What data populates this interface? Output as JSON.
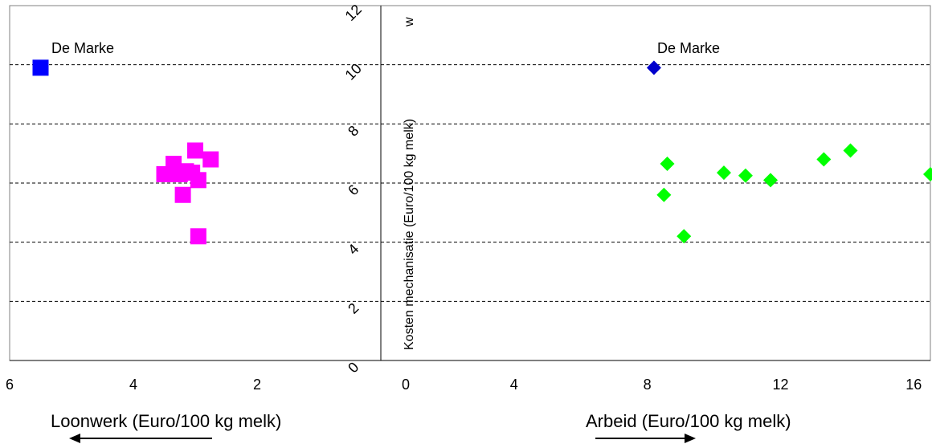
{
  "chart_data": {
    "type": "scatter",
    "y_axis": {
      "label": "Kosten mechanisatie (Euro/100 kg melk)",
      "ylim": [
        0,
        12
      ],
      "ticks": [
        "0",
        "2",
        "4",
        "6",
        "8",
        "10",
        "12"
      ],
      "grid": [
        2,
        4,
        6,
        8,
        10
      ],
      "extra_mark": "w"
    },
    "left_panel": {
      "xlabel": "Loonwerk (Euro/100 kg melk)",
      "xlim": [
        6,
        0
      ],
      "x_ticks": [
        "6",
        "4",
        "2"
      ],
      "series": [
        {
          "marker": "square",
          "color": "#0000ff",
          "points": [
            {
              "x": 5.5,
              "y": 9.9
            }
          ]
        },
        {
          "marker": "square",
          "color": "#ff00ff",
          "points": [
            {
              "x": 3.0,
              "y": 7.1
            },
            {
              "x": 2.75,
              "y": 6.8
            },
            {
              "x": 3.35,
              "y": 6.65
            },
            {
              "x": 3.05,
              "y": 6.35
            },
            {
              "x": 3.25,
              "y": 6.3
            },
            {
              "x": 3.5,
              "y": 6.3
            },
            {
              "x": 3.15,
              "y": 6.4
            },
            {
              "x": 2.95,
              "y": 6.1
            },
            {
              "x": 3.2,
              "y": 5.6
            },
            {
              "x": 2.95,
              "y": 4.2
            }
          ]
        }
      ],
      "annotation": "De Marke"
    },
    "right_panel": {
      "xlabel": "Arbeid (Euro/100 kg melk)",
      "xlim": [
        0,
        16.5
      ],
      "x_ticks": [
        "0",
        "4",
        "8",
        "12",
        "16"
      ],
      "series": [
        {
          "marker": "diamond",
          "color": "#0000cc",
          "points": [
            {
              "x": 8.2,
              "y": 9.9
            }
          ]
        },
        {
          "marker": "diamond",
          "color": "#00ff00",
          "points": [
            {
              "x": 8.6,
              "y": 6.65
            },
            {
              "x": 8.5,
              "y": 5.6
            },
            {
              "x": 9.1,
              "y": 4.2
            },
            {
              "x": 10.3,
              "y": 6.35
            },
            {
              "x": 10.95,
              "y": 6.25
            },
            {
              "x": 11.7,
              "y": 6.1
            },
            {
              "x": 13.3,
              "y": 6.8
            },
            {
              "x": 14.1,
              "y": 7.1
            },
            {
              "x": 16.5,
              "y": 6.3
            }
          ]
        }
      ],
      "annotation": "De Marke"
    }
  }
}
